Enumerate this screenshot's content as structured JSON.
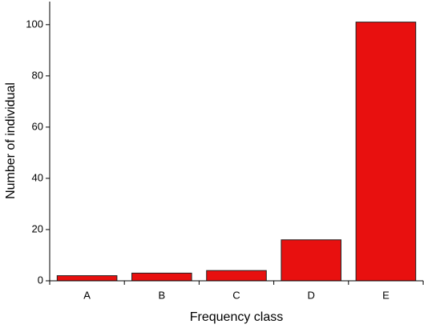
{
  "chart_data": {
    "type": "bar",
    "x_label": "Frequency class",
    "y_label": "Number of individual",
    "categories": [
      "A",
      "B",
      "C",
      "D",
      "E"
    ],
    "values": [
      2,
      3,
      4,
      16,
      101
    ],
    "color": "#e8100f",
    "ylim": [
      0,
      109
    ],
    "yticks": [
      0,
      20,
      40,
      60,
      80,
      100
    ],
    "grid": false
  }
}
